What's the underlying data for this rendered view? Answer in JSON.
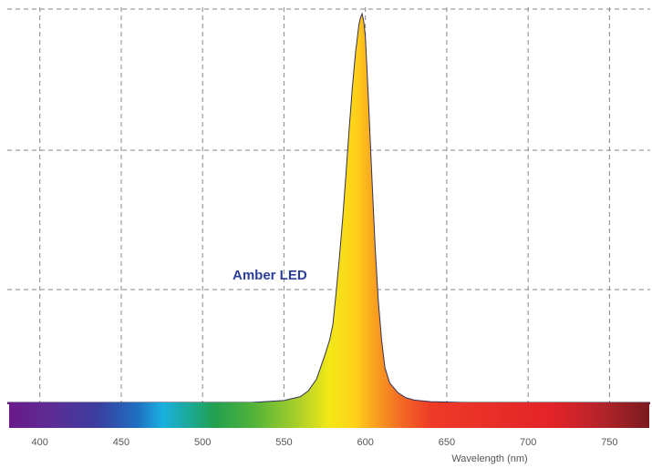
{
  "chart_data": {
    "type": "area",
    "title": "",
    "xlabel": "Wavelength (nm)",
    "ylabel": "",
    "xlim": [
      380,
      775
    ],
    "ylim": [
      0,
      1
    ],
    "x_ticks": [
      400,
      450,
      500,
      550,
      600,
      650,
      700,
      750
    ],
    "grid": true,
    "annotations": [
      {
        "text": "Amber LED"
      }
    ],
    "series": [
      {
        "x": [
          380,
          420,
          460,
          500,
          530,
          550,
          560,
          565,
          570,
          575,
          578,
          580,
          582,
          584,
          586,
          588,
          590,
          592,
          594,
          596,
          597,
          598,
          599,
          600,
          601,
          602,
          604,
          606,
          608,
          610,
          612,
          615,
          620,
          625,
          630,
          640,
          660,
          700,
          775
        ],
        "values": [
          0.0,
          0.0,
          0.0,
          0.0,
          0.0,
          0.005,
          0.015,
          0.03,
          0.06,
          0.12,
          0.16,
          0.2,
          0.28,
          0.37,
          0.47,
          0.58,
          0.7,
          0.81,
          0.9,
          0.97,
          0.99,
          1.0,
          0.98,
          0.94,
          0.86,
          0.77,
          0.58,
          0.4,
          0.26,
          0.16,
          0.09,
          0.05,
          0.025,
          0.012,
          0.006,
          0.002,
          0.0,
          0.0,
          0.0
        ]
      }
    ],
    "colors": {
      "grid": "#888888",
      "outline": "#333355",
      "annotation": "#2b3f9a"
    }
  }
}
